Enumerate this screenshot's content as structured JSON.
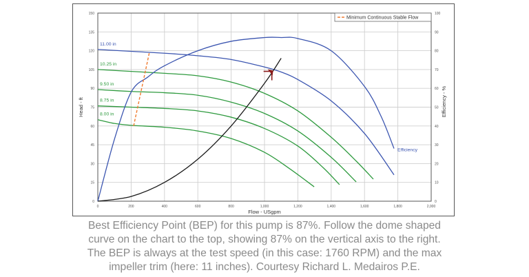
{
  "chart_data": {
    "type": "line",
    "title": "",
    "xlabel": "Flow - USgpm",
    "ylabel": "Head - ft",
    "y2label": "Efficiency - %",
    "xlim": [
      0,
      2000
    ],
    "ylim": [
      0,
      150
    ],
    "y2lim": [
      0,
      100
    ],
    "grid": true,
    "x_ticks": [
      0,
      200,
      400,
      600,
      800,
      1000,
      1200,
      1400,
      1600,
      1800,
      2000
    ],
    "x_tick_labels": [
      "0",
      "200",
      "400",
      "600",
      "800",
      "1,000",
      "1,200",
      "1,400",
      "1,600",
      "1,800",
      "2,000"
    ],
    "y_ticks": [
      0,
      15,
      30,
      45,
      60,
      75,
      90,
      105,
      120,
      135,
      150
    ],
    "y2_ticks": [
      0,
      10,
      20,
      30,
      40,
      50,
      60,
      70,
      80,
      90,
      100
    ],
    "legend": {
      "position": "top-right",
      "entries": [
        "Minimum Continuous Stable Flow"
      ]
    },
    "series": [
      {
        "name": "11.00 in",
        "axis": "head",
        "color": "#3b55b0",
        "x": [
          0,
          200,
          400,
          600,
          800,
          1000,
          1100,
          1200,
          1400,
          1600,
          1777
        ],
        "y": [
          121,
          119.5,
          118,
          116,
          113,
          107,
          103,
          97,
          80,
          54,
          21
        ]
      },
      {
        "name": "10.25 in",
        "axis": "head",
        "color": "#2e9a3e",
        "x": [
          0,
          200,
          400,
          600,
          800,
          1000,
          1200,
          1400,
          1550,
          1653
        ],
        "y": [
          105,
          103.5,
          102,
          100,
          95,
          86,
          72,
          51,
          32,
          17.6
        ]
      },
      {
        "name": "9.50 in",
        "axis": "head",
        "color": "#2e9a3e",
        "x": [
          0,
          200,
          400,
          600,
          800,
          1000,
          1200,
          1400,
          1550
        ],
        "y": [
          89,
          87.5,
          86.5,
          84.5,
          79,
          70,
          56,
          35,
          15.4
        ]
      },
      {
        "name": "8.75 in",
        "axis": "head",
        "color": "#2e9a3e",
        "x": [
          0,
          200,
          400,
          600,
          800,
          1000,
          1200,
          1350,
          1450
        ],
        "y": [
          76,
          75,
          74,
          72,
          67,
          58,
          44,
          27,
          13.2
        ]
      },
      {
        "name": "8.00 in",
        "axis": "head",
        "color": "#2e9a3e",
        "x": [
          0,
          100,
          200,
          400,
          600,
          800,
          1000,
          1150,
          1298
        ],
        "y": [
          65,
          62,
          60.5,
          59,
          56,
          50,
          39,
          26,
          11.5
        ]
      },
      {
        "name": "Efficiency",
        "axis": "efficiency",
        "color": "#3b55b0",
        "x": [
          0,
          100,
          200,
          300,
          400,
          600,
          800,
          1000,
          1100,
          1200,
          1400,
          1600,
          1700,
          1777
        ],
        "y": [
          0,
          33,
          58,
          66,
          72,
          80,
          85,
          87,
          87,
          86.5,
          80,
          61,
          45,
          28
        ]
      },
      {
        "name": "System Curve",
        "axis": "head",
        "color": "#1a1a1a",
        "x": [
          0,
          200,
          400,
          600,
          800,
          1000,
          1100
        ],
        "y": [
          0,
          3.8,
          15,
          33.5,
          60,
          94,
          114
        ]
      },
      {
        "name": "Minimum Continuous Stable Flow",
        "axis": "head",
        "color": "#f07a2e",
        "dashed": true,
        "x": [
          215,
          310
        ],
        "y": [
          60,
          119
        ]
      }
    ],
    "annotations": [
      {
        "text": "11.00 in",
        "x": 0,
        "y": 121
      },
      {
        "text": "10.25 in",
        "x": 0,
        "y": 105
      },
      {
        "text": "9.50 in",
        "x": 0,
        "y": 89
      },
      {
        "text": "8.75 in",
        "x": 0,
        "y": 76
      },
      {
        "text": "8.00 in",
        "x": 0,
        "y": 65
      },
      {
        "text": "Efficiency",
        "x": 1777,
        "y_eff": 28
      },
      {
        "text": "BEP marker",
        "x": 1040,
        "y": 103
      }
    ],
    "bep": {
      "flow": 1040,
      "head": 103,
      "efficiency": 87
    }
  },
  "caption": {
    "lines": [
      "Best Efficiency Point (BEP) for this pump is 87%. Follow the dome shaped",
      "curve on the chart to the top, showing 87% on the vertical axis to the right.",
      "The BEP is always at the test speed (in this case: 1760 RPM) and the max",
      "impeller trim (here:  11 inches). Courtesy Richard L. Medairos P.E."
    ]
  }
}
